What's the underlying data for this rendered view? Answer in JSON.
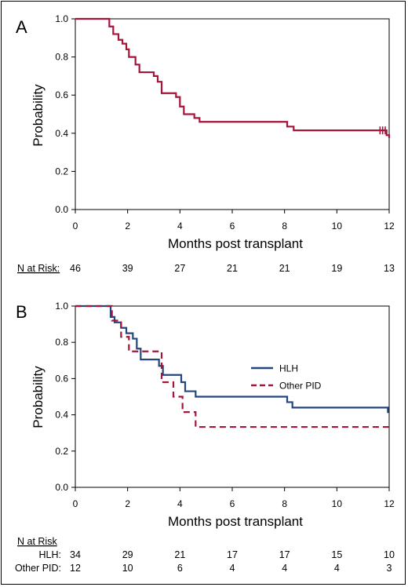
{
  "chart_data": [
    {
      "type": "line",
      "panel_label": "A",
      "xlabel": "Months post transplant",
      "ylabel": "Probability",
      "xlim": [
        0,
        12
      ],
      "ylim": [
        0,
        1.0
      ],
      "x_ticks": [
        "0",
        "2",
        "4",
        "6",
        "8",
        "10",
        "12"
      ],
      "y_ticks": [
        "0.0",
        "0.2",
        "0.4",
        "0.6",
        "0.8",
        "1.0"
      ],
      "series": [
        {
          "color": "#a5153a",
          "dash": "solid",
          "steps": [
            [
              0,
              1.0
            ],
            [
              1.3,
              0.96
            ],
            [
              1.45,
              0.92
            ],
            [
              1.65,
              0.89
            ],
            [
              1.8,
              0.87
            ],
            [
              1.95,
              0.84
            ],
            [
              2.05,
              0.8
            ],
            [
              2.3,
              0.76
            ],
            [
              2.45,
              0.72
            ],
            [
              3.0,
              0.7
            ],
            [
              3.15,
              0.67
            ],
            [
              3.3,
              0.61
            ],
            [
              3.85,
              0.59
            ],
            [
              4.0,
              0.54
            ],
            [
              4.15,
              0.5
            ],
            [
              4.55,
              0.48
            ],
            [
              4.75,
              0.46
            ],
            [
              8.1,
              0.435
            ],
            [
              8.35,
              0.415
            ],
            [
              11.9,
              0.39
            ],
            [
              12.0,
              0.375
            ]
          ],
          "censor_marks": [
            11.65,
            11.75,
            11.85
          ]
        }
      ],
      "risk_table": {
        "header": "N at Risk:",
        "rows": [
          {
            "label": "",
            "values": [
              "46",
              "39",
              "27",
              "21",
              "21",
              "19",
              "13"
            ]
          }
        ]
      }
    },
    {
      "type": "line",
      "panel_label": "B",
      "xlabel": "Months post transplant",
      "ylabel": "Probability",
      "xlim": [
        0,
        12
      ],
      "ylim": [
        0,
        1.0
      ],
      "x_ticks": [
        "0",
        "2",
        "4",
        "6",
        "8",
        "10",
        "12"
      ],
      "y_ticks": [
        "0.0",
        "0.2",
        "0.4",
        "0.6",
        "0.8",
        "1.0"
      ],
      "legend_position": "right",
      "series": [
        {
          "name": "HLH",
          "color": "#24467f",
          "dash": "solid",
          "steps": [
            [
              0,
              1.0
            ],
            [
              1.35,
              0.94
            ],
            [
              1.5,
              0.91
            ],
            [
              1.75,
              0.88
            ],
            [
              1.95,
              0.85
            ],
            [
              2.2,
              0.82
            ],
            [
              2.35,
              0.765
            ],
            [
              2.5,
              0.705
            ],
            [
              3.2,
              0.67
            ],
            [
              3.35,
              0.62
            ],
            [
              4.05,
              0.58
            ],
            [
              4.2,
              0.53
            ],
            [
              4.6,
              0.5
            ],
            [
              8.1,
              0.47
            ],
            [
              8.3,
              0.44
            ],
            [
              11.95,
              0.41
            ]
          ],
          "censor_marks": []
        },
        {
          "name": "Other PID",
          "color": "#a5153a",
          "dash": "dashed",
          "steps": [
            [
              0,
              1.0
            ],
            [
              1.4,
              0.92
            ],
            [
              1.75,
              0.83
            ],
            [
              2.05,
              0.75
            ],
            [
              2.7,
              0.75
            ],
            [
              3.3,
              0.58
            ],
            [
              3.75,
              0.5
            ],
            [
              4.1,
              0.415
            ],
            [
              4.6,
              0.333
            ],
            [
              12.0,
              0.333
            ]
          ],
          "censor_marks": []
        }
      ],
      "risk_table": {
        "header": "N at Risk",
        "rows": [
          {
            "label": "HLH:",
            "values": [
              "34",
              "29",
              "21",
              "17",
              "17",
              "15",
              "10"
            ]
          },
          {
            "label": "Other PID:",
            "values": [
              "12",
              "10",
              "6",
              "4",
              "4",
              "4",
              "3"
            ]
          }
        ]
      }
    }
  ]
}
